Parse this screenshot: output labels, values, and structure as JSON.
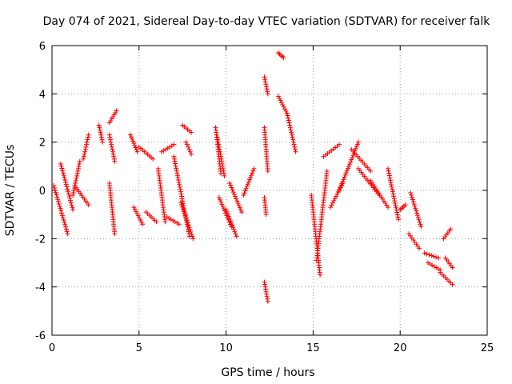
{
  "chart_data": {
    "type": "scatter",
    "title": "Day 074 of 2021, Sidereal Day-to-day VTEC variation (SDTVAR) for receiver falk",
    "xlabel": "GPS time / hours",
    "ylabel": "SDTVAR / TECUs",
    "xlim": [
      0,
      25
    ],
    "ylim": [
      -6,
      6
    ],
    "xticks": [
      0,
      5,
      10,
      15,
      20,
      25
    ],
    "yticks": [
      -6,
      -4,
      -2,
      0,
      2,
      4,
      6
    ],
    "grid": true,
    "marker": "+",
    "color": "#ff0000",
    "segments": [
      {
        "x": [
          0.1,
          0.9
        ],
        "y": [
          0.2,
          -1.8
        ]
      },
      {
        "x": [
          0.5,
          1.2
        ],
        "y": [
          1.1,
          -0.8
        ]
      },
      {
        "x": [
          1.2,
          1.6
        ],
        "y": [
          -0.2,
          1.2
        ]
      },
      {
        "x": [
          1.3,
          2.1
        ],
        "y": [
          0.2,
          -0.6
        ]
      },
      {
        "x": [
          1.8,
          2.1
        ],
        "y": [
          1.3,
          2.3
        ]
      },
      {
        "x": [
          2.7,
          2.9
        ],
        "y": [
          2.7,
          2.0
        ]
      },
      {
        "x": [
          3.3,
          3.7
        ],
        "y": [
          2.8,
          3.3
        ]
      },
      {
        "x": [
          3.3,
          3.6
        ],
        "y": [
          2.3,
          1.2
        ]
      },
      {
        "x": [
          3.3,
          3.6
        ],
        "y": [
          0.3,
          -1.8
        ]
      },
      {
        "x": [
          4.5,
          4.9
        ],
        "y": [
          2.3,
          1.6
        ]
      },
      {
        "x": [
          4.7,
          5.2
        ],
        "y": [
          -0.7,
          -1.4
        ]
      },
      {
        "x": [
          5.0,
          5.8
        ],
        "y": [
          1.8,
          1.3
        ]
      },
      {
        "x": [
          5.4,
          6.0
        ],
        "y": [
          -0.9,
          -1.3
        ]
      },
      {
        "x": [
          6.3,
          7.0
        ],
        "y": [
          1.6,
          1.9
        ]
      },
      {
        "x": [
          6.1,
          6.5
        ],
        "y": [
          0.9,
          -1.3
        ]
      },
      {
        "x": [
          6.6,
          7.3
        ],
        "y": [
          -1.1,
          -1.4
        ]
      },
      {
        "x": [
          7.0,
          7.9
        ],
        "y": [
          1.4,
          -1.9
        ]
      },
      {
        "x": [
          7.5,
          8.0
        ],
        "y": [
          2.7,
          2.4
        ]
      },
      {
        "x": [
          7.7,
          8.0
        ],
        "y": [
          2.0,
          1.5
        ]
      },
      {
        "x": [
          7.4,
          8.1
        ],
        "y": [
          -0.5,
          -2.0
        ]
      },
      {
        "x": [
          9.4,
          9.7
        ],
        "y": [
          2.6,
          0.7
        ]
      },
      {
        "x": [
          9.6,
          10.3
        ],
        "y": [
          -0.3,
          -1.5
        ]
      },
      {
        "x": [
          9.5,
          9.9
        ],
        "y": [
          2.2,
          0.6
        ]
      },
      {
        "x": [
          10.0,
          10.6
        ],
        "y": [
          -0.8,
          -1.9
        ]
      },
      {
        "x": [
          10.2,
          10.9
        ],
        "y": [
          0.3,
          -0.9
        ]
      },
      {
        "x": [
          11.0,
          11.6
        ],
        "y": [
          -0.2,
          0.9
        ]
      },
      {
        "x": [
          12.2,
          12.4
        ],
        "y": [
          4.7,
          4.0
        ]
      },
      {
        "x": [
          12.2,
          12.4
        ],
        "y": [
          2.6,
          0.8
        ]
      },
      {
        "x": [
          12.2,
          12.3
        ],
        "y": [
          -0.3,
          -1.0
        ]
      },
      {
        "x": [
          12.2,
          12.4
        ],
        "y": [
          -3.8,
          -4.6
        ]
      },
      {
        "x": [
          13.0,
          13.3
        ],
        "y": [
          5.7,
          5.5
        ]
      },
      {
        "x": [
          13.0,
          13.5
        ],
        "y": [
          3.9,
          3.2
        ]
      },
      {
        "x": [
          13.5,
          14.0
        ],
        "y": [
          3.2,
          1.6
        ]
      },
      {
        "x": [
          14.9,
          15.4
        ],
        "y": [
          -0.2,
          -3.5
        ]
      },
      {
        "x": [
          15.2,
          15.8
        ],
        "y": [
          -2.9,
          0.8
        ]
      },
      {
        "x": [
          15.6,
          16.5
        ],
        "y": [
          1.4,
          1.9
        ]
      },
      {
        "x": [
          16.0,
          16.7
        ],
        "y": [
          -0.7,
          0.3
        ]
      },
      {
        "x": [
          16.5,
          17.6
        ],
        "y": [
          0.0,
          2.0
        ]
      },
      {
        "x": [
          17.2,
          18.3
        ],
        "y": [
          1.7,
          0.8
        ]
      },
      {
        "x": [
          17.6,
          18.8
        ],
        "y": [
          0.9,
          -0.2
        ]
      },
      {
        "x": [
          18.3,
          19.3
        ],
        "y": [
          0.4,
          -0.7
        ]
      },
      {
        "x": [
          19.3,
          19.9
        ],
        "y": [
          0.9,
          -1.2
        ]
      },
      {
        "x": [
          20.0,
          20.3
        ],
        "y": [
          -0.8,
          -0.6
        ]
      },
      {
        "x": [
          20.6,
          21.2
        ],
        "y": [
          -0.1,
          -1.5
        ]
      },
      {
        "x": [
          20.5,
          21.1
        ],
        "y": [
          -1.8,
          -2.4
        ]
      },
      {
        "x": [
          21.4,
          22.2
        ],
        "y": [
          -2.6,
          -2.8
        ]
      },
      {
        "x": [
          21.6,
          22.3
        ],
        "y": [
          -3.0,
          -3.3
        ]
      },
      {
        "x": [
          22.3,
          23.0
        ],
        "y": [
          -3.4,
          -3.9
        ]
      },
      {
        "x": [
          22.5,
          22.9
        ],
        "y": [
          -2.0,
          -1.6
        ]
      },
      {
        "x": [
          22.6,
          23.0
        ],
        "y": [
          -2.8,
          -3.2
        ]
      }
    ]
  }
}
